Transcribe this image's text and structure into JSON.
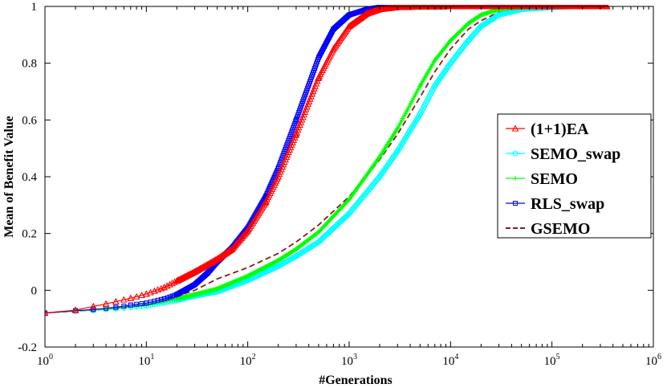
{
  "chart_data": {
    "type": "line",
    "title": "",
    "xlabel": "#Generations",
    "ylabel": "Mean of Benefit Value",
    "xscale": "log",
    "xlim": [
      1,
      1000000
    ],
    "ylim": [
      -0.2,
      1
    ],
    "grid": false,
    "legend_position": "right",
    "x_tick_labels": [
      "10^0",
      "10^1",
      "10^2",
      "10^3",
      "10^4",
      "10^5",
      "10^6"
    ],
    "y_tick_labels": [
      "-0.2",
      "0",
      "0.2",
      "0.4",
      "0.6",
      "0.8",
      "1"
    ],
    "series": [
      {
        "name": "(1+1)EA",
        "color": "#ff0000",
        "marker": "triangle",
        "x": [
          1,
          2,
          3,
          4,
          5,
          7,
          10,
          15,
          20,
          30,
          40,
          50,
          70,
          100,
          150,
          200,
          300,
          500,
          700,
          1000,
          1500,
          2000,
          3000,
          5000,
          10000,
          50000,
          100000,
          350000
        ],
        "y": [
          -0.08,
          -0.07,
          -0.057,
          -0.048,
          -0.04,
          -0.028,
          -0.013,
          0.01,
          0.033,
          0.065,
          0.09,
          0.11,
          0.145,
          0.21,
          0.31,
          0.4,
          0.55,
          0.75,
          0.85,
          0.93,
          0.975,
          0.99,
          0.997,
          0.999,
          1.0,
          1.0,
          1.0,
          1.0
        ]
      },
      {
        "name": "SEMO_swap",
        "color": "#00ffff",
        "marker": "circle",
        "x": [
          1,
          2,
          3,
          5,
          10,
          20,
          30,
          50,
          100,
          200,
          300,
          500,
          1000,
          2000,
          3000,
          5000,
          7000,
          10000,
          15000,
          20000,
          30000,
          50000,
          100000,
          160000
        ],
        "y": [
          -0.08,
          -0.073,
          -0.07,
          -0.065,
          -0.055,
          -0.035,
          -0.02,
          -0.005,
          0.035,
          0.085,
          0.12,
          0.17,
          0.27,
          0.4,
          0.49,
          0.62,
          0.72,
          0.8,
          0.88,
          0.93,
          0.97,
          0.99,
          0.997,
          1.0
        ]
      },
      {
        "name": "SEMO",
        "color": "#00ff00",
        "marker": "plus",
        "x": [
          1,
          2,
          3,
          5,
          10,
          20,
          30,
          50,
          100,
          200,
          300,
          500,
          1000,
          2000,
          3000,
          5000,
          7000,
          10000,
          15000,
          20000,
          30000,
          50000,
          100000
        ],
        "y": [
          -0.08,
          -0.073,
          -0.07,
          -0.064,
          -0.053,
          -0.03,
          -0.015,
          0.005,
          0.05,
          0.105,
          0.145,
          0.205,
          0.32,
          0.47,
          0.57,
          0.72,
          0.81,
          0.88,
          0.94,
          0.97,
          0.99,
          0.998,
          1.0
        ]
      },
      {
        "name": "RLS_swap",
        "color": "#0000ff",
        "marker": "square",
        "x": [
          1,
          2,
          3,
          5,
          7,
          10,
          15,
          20,
          30,
          40,
          50,
          70,
          100,
          150,
          200,
          300,
          500,
          700,
          1000,
          1500,
          2000,
          3000,
          5000,
          10000,
          40000
        ],
        "y": [
          -0.08,
          -0.072,
          -0.068,
          -0.06,
          -0.052,
          -0.045,
          -0.03,
          -0.015,
          0.02,
          0.06,
          0.1,
          0.15,
          0.22,
          0.33,
          0.43,
          0.6,
          0.82,
          0.92,
          0.97,
          0.99,
          0.997,
          1.0,
          1.0,
          1.0,
          1.0
        ]
      },
      {
        "name": "GSEMO",
        "color": "#8b1a1a",
        "marker": "none",
        "dashed": true,
        "x": [
          1,
          2,
          3,
          5,
          10,
          20,
          30,
          50,
          100,
          200,
          300,
          500,
          1000,
          2000,
          3000,
          5000,
          7000,
          10000,
          15000,
          20000,
          30000,
          50000,
          100000,
          150000
        ],
        "y": [
          -0.08,
          -0.073,
          -0.07,
          -0.064,
          -0.05,
          -0.02,
          0.0,
          0.04,
          0.08,
          0.13,
          0.17,
          0.23,
          0.33,
          0.46,
          0.55,
          0.68,
          0.77,
          0.85,
          0.92,
          0.95,
          0.98,
          0.995,
          1.0,
          1.0
        ]
      }
    ]
  }
}
